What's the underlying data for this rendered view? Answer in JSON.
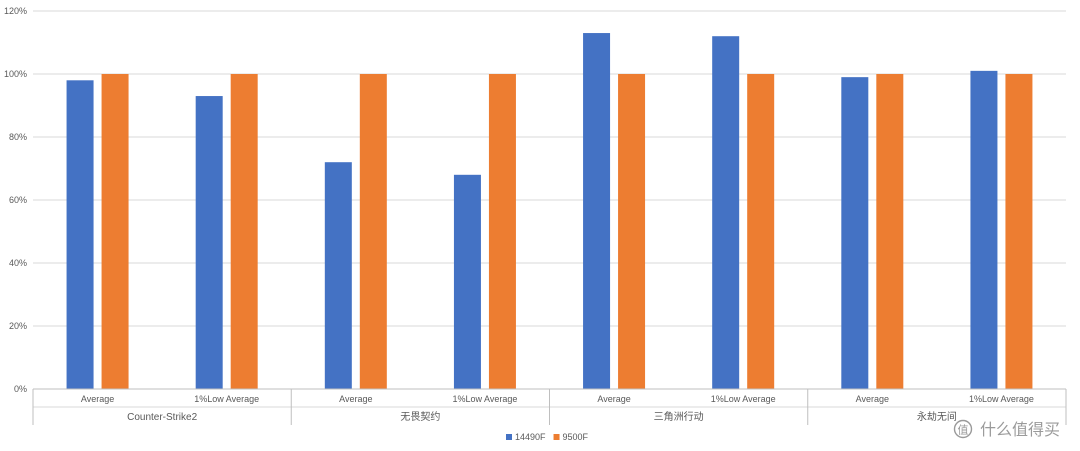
{
  "chart_data": {
    "type": "bar",
    "groups": [
      {
        "label": "Counter-Strike2",
        "categories": [
          "Average",
          "1%Low Average"
        ]
      },
      {
        "label": "无畏契约",
        "categories": [
          "Average",
          "1%Low Average"
        ]
      },
      {
        "label": "三角洲行动",
        "categories": [
          "Average",
          "1%Low Average"
        ]
      },
      {
        "label": "永劫无间",
        "categories": [
          "Average",
          "1%Low Average"
        ]
      }
    ],
    "categories": [
      "Average",
      "1%Low Average",
      "Average",
      "1%Low Average",
      "Average",
      "1%Low Average",
      "Average",
      "1%Low Average"
    ],
    "series": [
      {
        "name": "14490F",
        "color": "#4472C4",
        "values": [
          98,
          93,
          72,
          68,
          113,
          112,
          99,
          101
        ]
      },
      {
        "name": "9500F",
        "color": "#ED7D31",
        "values": [
          100,
          100,
          100,
          100,
          100,
          100,
          100,
          100
        ]
      }
    ],
    "ylim": [
      0,
      120
    ],
    "yticks": [
      "0%",
      "20%",
      "40%",
      "60%",
      "80%",
      "100%",
      "120%"
    ],
    "grid": true,
    "legend_position": "bottom",
    "title": "",
    "xlabel": "",
    "ylabel": ""
  },
  "watermark": {
    "text": "什么值得买",
    "icon": "smzdm-logo-icon"
  }
}
